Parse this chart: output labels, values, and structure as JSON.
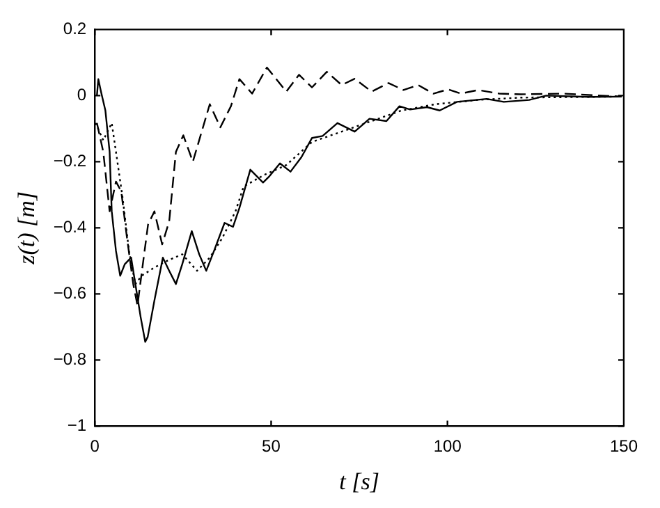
{
  "chart_data": {
    "type": "line",
    "xlabel": "t [s]",
    "ylabel": "z(t) [m]",
    "xlim": [
      0,
      150
    ],
    "xticks": [
      0,
      50,
      100,
      150
    ],
    "ylim": [
      -1,
      0.2
    ],
    "yticks": [
      -1,
      -0.8,
      -0.6,
      -0.4,
      -0.2,
      0,
      0.2
    ],
    "grid": false,
    "legend": false,
    "marker": "none",
    "series": [
      {
        "color": "#000000",
        "line_style": "solid",
        "x": [
          0.6,
          1,
          1.8,
          3,
          4.2,
          4.8,
          6,
          7.2,
          8.5,
          10.3,
          11.5,
          13,
          14.3,
          15,
          16.9,
          19.3,
          21.1,
          23,
          24.8,
          27.5,
          29.6,
          31.6,
          33.8,
          36.8,
          39.2,
          41,
          44.1,
          47.7,
          49.5,
          52.5,
          55.5,
          58.6,
          61.6,
          64.6,
          68.8,
          73.7,
          77.9,
          82.7,
          86.4,
          89.4,
          94.2,
          97.8,
          102.7,
          111.1,
          116,
          123.2,
          128,
          140.1,
          149.4
        ],
        "values": [
          0,
          0.05,
          0.01,
          -0.045,
          -0.17,
          -0.35,
          -0.47,
          -0.545,
          -0.51,
          -0.49,
          -0.57,
          -0.67,
          -0.745,
          -0.73,
          -0.62,
          -0.49,
          -0.53,
          -0.57,
          -0.51,
          -0.41,
          -0.48,
          -0.53,
          -0.47,
          -0.385,
          -0.397,
          -0.34,
          -0.224,
          -0.263,
          -0.244,
          -0.205,
          -0.23,
          -0.186,
          -0.128,
          -0.122,
          -0.083,
          -0.109,
          -0.07,
          -0.077,
          -0.032,
          -0.042,
          -0.035,
          -0.045,
          -0.019,
          -0.01,
          -0.019,
          -0.013,
          0,
          -0.004,
          -0.003
        ]
      },
      {
        "color": "#000000",
        "line_style": "dashed",
        "x": [
          0.6,
          2.4,
          4.2,
          6,
          7.5,
          9,
          10.9,
          12.1,
          13.5,
          15.1,
          16.9,
          19.1,
          21.1,
          23,
          25.1,
          27.8,
          32.6,
          35.6,
          38.6,
          41,
          44.6,
          48.8,
          54.3,
          57.9,
          61.6,
          65.8,
          70,
          73.7,
          78.5,
          83.3,
          87.5,
          91.7,
          96,
          100.2,
          103.8,
          108.7,
          114.7,
          120.8,
          132.9,
          149.4
        ],
        "values": [
          -0.083,
          -0.17,
          -0.35,
          -0.26,
          -0.29,
          -0.42,
          -0.57,
          -0.635,
          -0.52,
          -0.39,
          -0.35,
          -0.45,
          -0.38,
          -0.17,
          -0.12,
          -0.2,
          -0.026,
          -0.096,
          -0.032,
          0.05,
          0.006,
          0.085,
          0.012,
          0.063,
          0.025,
          0.072,
          0.032,
          0.051,
          0.012,
          0.038,
          0.017,
          0.032,
          0.006,
          0.019,
          0.006,
          0.017,
          0.006,
          0.004,
          0.006,
          -0.003
        ]
      },
      {
        "color": "#000000",
        "line_style": "dotted",
        "x": [
          0.2,
          2.4,
          4.8,
          6,
          7.9,
          9.7,
          11.5,
          13.3,
          16.9,
          20.5,
          24.8,
          29,
          32.6,
          36.2,
          39.9,
          42.2,
          48,
          54.3,
          61.6,
          70,
          78.5,
          87,
          96.6,
          108.7,
          120.8,
          149.4
        ],
        "values": [
          -0.083,
          -0.135,
          -0.083,
          -0.17,
          -0.31,
          -0.47,
          -0.57,
          -0.545,
          -0.52,
          -0.5,
          -0.48,
          -0.53,
          -0.49,
          -0.43,
          -0.35,
          -0.275,
          -0.24,
          -0.21,
          -0.14,
          -0.109,
          -0.077,
          -0.045,
          -0.026,
          -0.013,
          -0.006,
          -0.003
        ]
      }
    ]
  }
}
